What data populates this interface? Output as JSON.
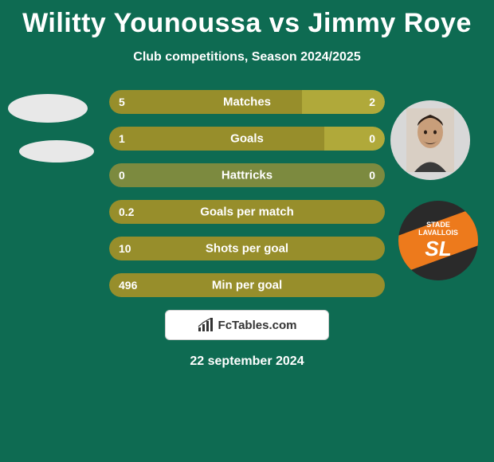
{
  "title": "Wilitty Younoussa vs Jimmy Roye",
  "subtitle": "Club competitions, Season 2024/2025",
  "date": "22 september 2024",
  "fctables_label": "FcTables.com",
  "colors": {
    "background": "#0e6b52",
    "p1": "#978e2b",
    "p2": "#b0a93a",
    "neutral": "#7c8a3f",
    "text": "#ffffff",
    "left_oval": "#e8e8e8",
    "club_badge_bg": "#2a2a2a",
    "club_badge_stripe": "#ed7a1c",
    "club_badge_text1": "STADE",
    "club_badge_text2": "LAVALLOIS",
    "club_badge_text3": "SL"
  },
  "bars": [
    {
      "metric": "Matches",
      "left": "5",
      "right": "2",
      "left_w": 70,
      "right_color": "p2",
      "left_color": "p1"
    },
    {
      "metric": "Goals",
      "left": "1",
      "right": "0",
      "left_w": 78,
      "right_color": "p2",
      "left_color": "p1"
    },
    {
      "metric": "Hattricks",
      "left": "0",
      "right": "0",
      "left_w": 100,
      "right_color": "neutral",
      "left_color": "neutral"
    },
    {
      "metric": "Goals per match",
      "left": "0.2",
      "right": "",
      "left_w": 100,
      "right_color": "p1",
      "left_color": "p1"
    },
    {
      "metric": "Shots per goal",
      "left": "10",
      "right": "",
      "left_w": 100,
      "right_color": "p1",
      "left_color": "p1"
    },
    {
      "metric": "Min per goal",
      "left": "496",
      "right": "",
      "left_w": 100,
      "right_color": "p1",
      "left_color": "p1"
    }
  ]
}
